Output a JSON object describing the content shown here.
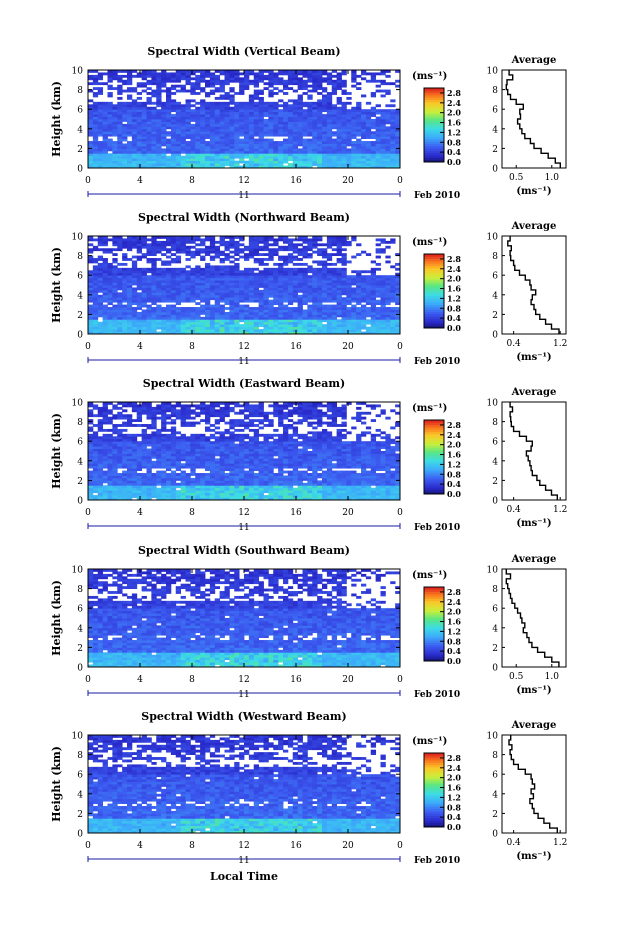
{
  "chart_data": {
    "type": "heatmap",
    "shared": {
      "xlabel": "Local Time",
      "ylabel": "Height (km)",
      "x_ticks": [
        "0",
        "4",
        "8",
        "12",
        "16",
        "20",
        "0"
      ],
      "x_range_hours": [
        0,
        24
      ],
      "y_ticks": [
        "0",
        "2",
        "4",
        "6",
        "8",
        "10"
      ],
      "y_range_km": [
        0,
        10
      ],
      "day_label": "11",
      "date_label": "Feb 2010",
      "unit_label": "(ms⁻¹)",
      "colorbar_ticks": [
        "0.0",
        "0.4",
        "0.8",
        "1.2",
        "1.6",
        "2.0",
        "2.4",
        "2.8"
      ],
      "colorbar_range": [
        0,
        3.0
      ],
      "avg_title": "Average",
      "avg_xlabel": "(ms⁻¹)"
    },
    "panels": [
      {
        "title": "Spectral Width (Vertical Beam)",
        "avg_x_ticks": [
          0.5,
          1.0
        ],
        "avg_x_tick_labels": [
          "0.5",
          "1.0"
        ],
        "avg_xlim": [
          0.3,
          1.2
        ],
        "average_profile": [
          [
            1.12,
            0.0
          ],
          [
            1.05,
            0.5
          ],
          [
            0.95,
            1.0
          ],
          [
            0.85,
            1.5
          ],
          [
            0.75,
            2.0
          ],
          [
            0.7,
            2.5
          ],
          [
            0.62,
            3.0
          ],
          [
            0.58,
            3.5
          ],
          [
            0.55,
            4.0
          ],
          [
            0.52,
            4.5
          ],
          [
            0.56,
            5.0
          ],
          [
            0.55,
            5.5
          ],
          [
            0.6,
            6.0
          ],
          [
            0.5,
            6.5
          ],
          [
            0.42,
            7.0
          ],
          [
            0.38,
            7.5
          ],
          [
            0.36,
            8.0
          ],
          [
            0.37,
            8.5
          ],
          [
            0.45,
            9.0
          ],
          [
            0.4,
            9.5
          ]
        ]
      },
      {
        "title": "Spectral Width (Northward Beam)",
        "avg_x_ticks": [
          0.4,
          1.2
        ],
        "avg_x_tick_labels": [
          "0.4",
          "1.2"
        ],
        "avg_xlim": [
          0.2,
          1.3
        ],
        "average_profile": [
          [
            1.18,
            0.0
          ],
          [
            1.05,
            0.5
          ],
          [
            0.95,
            1.0
          ],
          [
            0.85,
            1.5
          ],
          [
            0.78,
            2.0
          ],
          [
            0.75,
            2.5
          ],
          [
            0.7,
            3.0
          ],
          [
            0.72,
            3.5
          ],
          [
            0.78,
            4.0
          ],
          [
            0.7,
            4.5
          ],
          [
            0.68,
            5.0
          ],
          [
            0.6,
            5.5
          ],
          [
            0.5,
            6.0
          ],
          [
            0.42,
            6.5
          ],
          [
            0.4,
            7.0
          ],
          [
            0.35,
            7.5
          ],
          [
            0.34,
            8.0
          ],
          [
            0.36,
            8.5
          ],
          [
            0.3,
            9.0
          ],
          [
            0.34,
            9.5
          ]
        ]
      },
      {
        "title": "Spectral Width (Eastward Beam)",
        "avg_x_ticks": [
          0.4,
          1.2
        ],
        "avg_x_tick_labels": [
          "0.4",
          "1.2"
        ],
        "avg_xlim": [
          0.2,
          1.3
        ],
        "average_profile": [
          [
            1.15,
            0.0
          ],
          [
            1.05,
            0.5
          ],
          [
            0.95,
            1.0
          ],
          [
            0.85,
            1.5
          ],
          [
            0.8,
            2.0
          ],
          [
            0.72,
            2.5
          ],
          [
            0.7,
            3.0
          ],
          [
            0.68,
            3.5
          ],
          [
            0.65,
            4.0
          ],
          [
            0.62,
            4.5
          ],
          [
            0.7,
            5.0
          ],
          [
            0.72,
            5.5
          ],
          [
            0.62,
            6.0
          ],
          [
            0.5,
            6.5
          ],
          [
            0.4,
            7.0
          ],
          [
            0.36,
            7.5
          ],
          [
            0.35,
            8.0
          ],
          [
            0.34,
            8.5
          ],
          [
            0.38,
            9.0
          ],
          [
            0.34,
            9.5
          ]
        ]
      },
      {
        "title": "Spectral Width (Southward Beam)",
        "avg_x_ticks": [
          0.5,
          1.0
        ],
        "avg_x_tick_labels": [
          "0.5",
          "1.0"
        ],
        "avg_xlim": [
          0.3,
          1.2
        ],
        "average_profile": [
          [
            1.1,
            0.0
          ],
          [
            1.0,
            0.5
          ],
          [
            0.9,
            1.0
          ],
          [
            0.8,
            1.5
          ],
          [
            0.72,
            2.0
          ],
          [
            0.68,
            2.5
          ],
          [
            0.65,
            3.0
          ],
          [
            0.6,
            3.5
          ],
          [
            0.62,
            4.0
          ],
          [
            0.58,
            4.5
          ],
          [
            0.56,
            5.0
          ],
          [
            0.52,
            5.5
          ],
          [
            0.48,
            6.0
          ],
          [
            0.44,
            6.5
          ],
          [
            0.42,
            7.0
          ],
          [
            0.4,
            7.5
          ],
          [
            0.38,
            8.0
          ],
          [
            0.36,
            8.5
          ],
          [
            0.42,
            9.0
          ],
          [
            0.36,
            9.5
          ]
        ]
      },
      {
        "title": "Spectral Width (Westward Beam)",
        "avg_x_ticks": [
          0.4,
          1.2
        ],
        "avg_x_tick_labels": [
          "0.4",
          "1.2"
        ],
        "avg_xlim": [
          0.2,
          1.3
        ],
        "average_profile": [
          [
            1.15,
            0.0
          ],
          [
            1.02,
            0.5
          ],
          [
            0.92,
            1.0
          ],
          [
            0.82,
            1.5
          ],
          [
            0.75,
            2.0
          ],
          [
            0.72,
            2.5
          ],
          [
            0.68,
            3.0
          ],
          [
            0.74,
            3.5
          ],
          [
            0.7,
            4.0
          ],
          [
            0.76,
            4.5
          ],
          [
            0.72,
            5.0
          ],
          [
            0.7,
            5.5
          ],
          [
            0.6,
            6.0
          ],
          [
            0.48,
            6.5
          ],
          [
            0.4,
            7.0
          ],
          [
            0.36,
            7.5
          ],
          [
            0.34,
            8.0
          ],
          [
            0.37,
            8.5
          ],
          [
            0.32,
            9.0
          ],
          [
            0.35,
            9.5
          ]
        ]
      }
    ]
  }
}
